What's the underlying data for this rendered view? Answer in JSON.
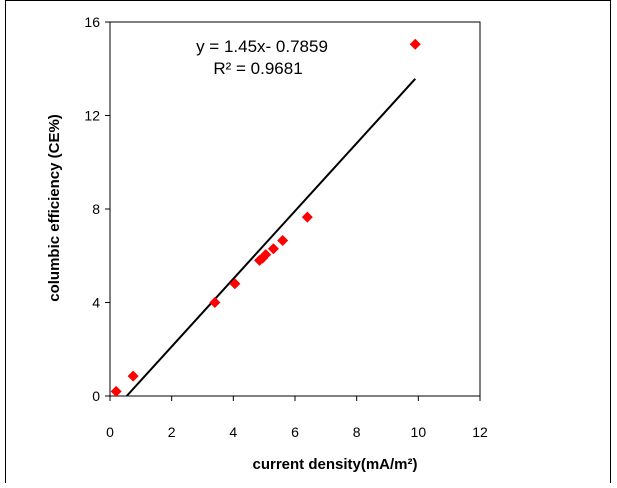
{
  "chart_data": {
    "type": "scatter",
    "title": "",
    "xlabel": "current density(mA/m²)",
    "ylabel": "columbic efficiency (CE%)",
    "xlim": [
      0,
      12
    ],
    "ylim": [
      0,
      16
    ],
    "xticks": [
      0,
      2,
      4,
      6,
      8,
      10,
      12
    ],
    "yticks": [
      0,
      4,
      8,
      12,
      16
    ],
    "xtick_labels": [
      "0",
      "2",
      "4",
      "6",
      "8",
      "10",
      "12"
    ],
    "ytick_labels": [
      "0",
      "4",
      "8",
      "12",
      "16"
    ],
    "grid": false,
    "legend": "none",
    "series": [
      {
        "marker": "diamond",
        "color": "#ff0000",
        "x": [
          0.2,
          0.75,
          3.4,
          4.05,
          4.85,
          4.95,
          5.05,
          5.3,
          5.6,
          6.4,
          9.9
        ],
        "y": [
          0.2,
          0.85,
          4.0,
          4.8,
          5.8,
          5.9,
          6.05,
          6.3,
          6.65,
          7.65,
          15.05
        ]
      }
    ],
    "trendline": {
      "color": "#000000",
      "slope": 1.45,
      "intercept": -0.7859,
      "x_range": [
        0.542,
        9.9
      ],
      "equation": "y = 1.45x- 0.7859",
      "r_squared": "R² = 0.9681"
    }
  }
}
